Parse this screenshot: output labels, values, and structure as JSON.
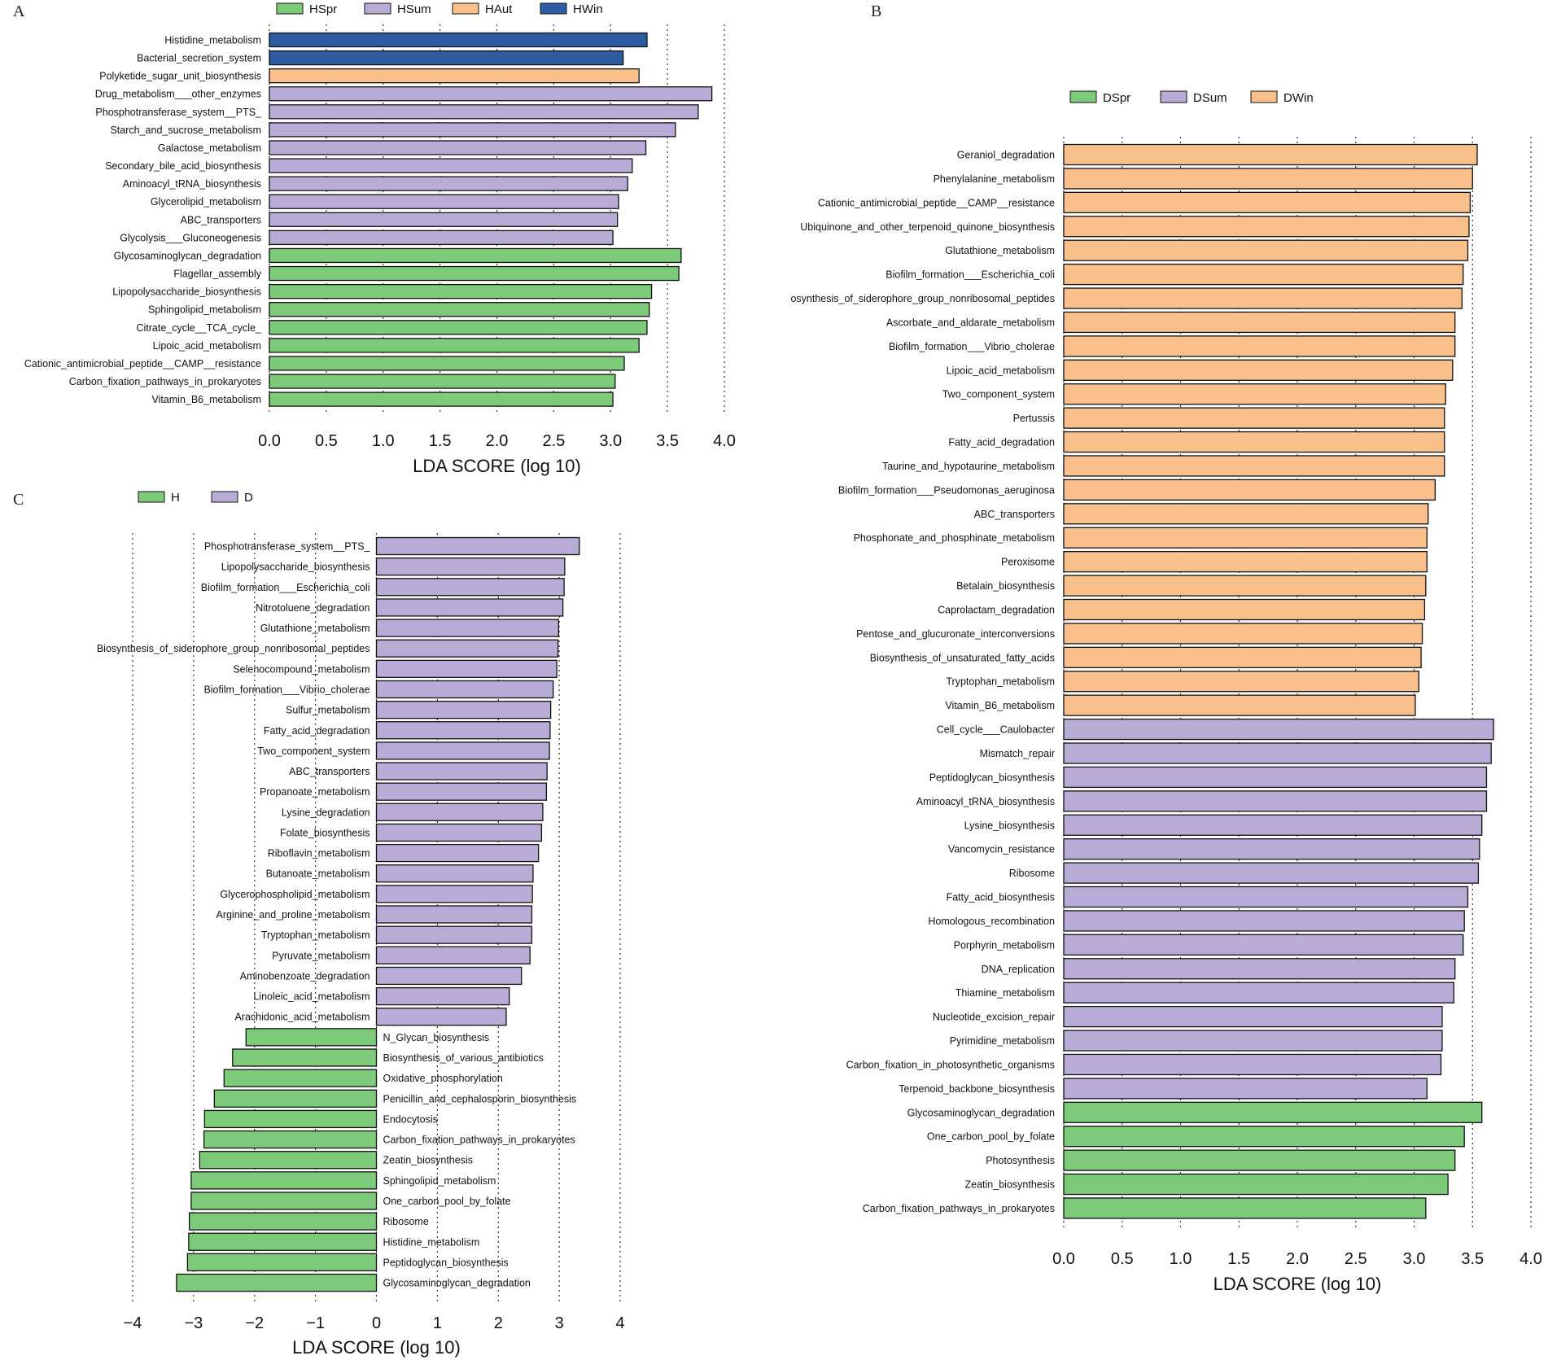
{
  "chart_data": [
    {
      "id": "A",
      "panel_label": "A",
      "type": "bar",
      "orientation": "horizontal",
      "xlabel": "LDA SCORE (log 10)",
      "xlim": [
        0,
        4.0
      ],
      "xticks": [
        "0.0",
        "0.5",
        "1.0",
        "1.5",
        "2.0",
        "2.5",
        "3.0",
        "3.5",
        "4.0"
      ],
      "grid": true,
      "legend_position": "top",
      "legend": [
        {
          "name": "HSpr",
          "color": "#7dca7a"
        },
        {
          "name": "HSum",
          "color": "#b8acd6"
        },
        {
          "name": "HAut",
          "color": "#f9c08c"
        },
        {
          "name": "HWin",
          "color": "#2e5ca3"
        }
      ],
      "bars": [
        {
          "label": "Histidine_metabolism",
          "value": 3.32,
          "group": "HWin"
        },
        {
          "label": "Bacterial_secretion_system",
          "value": 3.11,
          "group": "HWin"
        },
        {
          "label": "Polyketide_sugar_unit_biosynthesis",
          "value": 3.25,
          "group": "HAut"
        },
        {
          "label": "Drug_metabolism___other_enzymes",
          "value": 3.89,
          "group": "HSum"
        },
        {
          "label": "Phosphotransferase_system__PTS_",
          "value": 3.77,
          "group": "HSum"
        },
        {
          "label": "Starch_and_sucrose_metabolism",
          "value": 3.57,
          "group": "HSum"
        },
        {
          "label": "Galactose_metabolism",
          "value": 3.31,
          "group": "HSum"
        },
        {
          "label": "Secondary_bile_acid_biosynthesis",
          "value": 3.19,
          "group": "HSum"
        },
        {
          "label": "Aminoacyl_tRNA_biosynthesis",
          "value": 3.15,
          "group": "HSum"
        },
        {
          "label": "Glycerolipid_metabolism",
          "value": 3.07,
          "group": "HSum"
        },
        {
          "label": "ABC_transporters",
          "value": 3.06,
          "group": "HSum"
        },
        {
          "label": "Glycolysis___Gluconeogenesis",
          "value": 3.02,
          "group": "HSum"
        },
        {
          "label": "Glycosaminoglycan_degradation",
          "value": 3.62,
          "group": "HSpr"
        },
        {
          "label": "Flagellar_assembly",
          "value": 3.6,
          "group": "HSpr"
        },
        {
          "label": "Lipopolysaccharide_biosynthesis",
          "value": 3.36,
          "group": "HSpr"
        },
        {
          "label": "Sphingolipid_metabolism",
          "value": 3.34,
          "group": "HSpr"
        },
        {
          "label": "Citrate_cycle__TCA_cycle_",
          "value": 3.32,
          "group": "HSpr"
        },
        {
          "label": "Lipoic_acid_metabolism",
          "value": 3.25,
          "group": "HSpr"
        },
        {
          "label": "Cationic_antimicrobial_peptide__CAMP__resistance",
          "value": 3.12,
          "group": "HSpr"
        },
        {
          "label": "Carbon_fixation_pathways_in_prokaryotes",
          "value": 3.04,
          "group": "HSpr"
        },
        {
          "label": "Vitamin_B6_metabolism",
          "value": 3.02,
          "group": "HSpr"
        }
      ]
    },
    {
      "id": "B",
      "panel_label": "B",
      "type": "bar",
      "orientation": "horizontal",
      "xlabel": "LDA SCORE (log 10)",
      "xlim": [
        0,
        4.0
      ],
      "xticks": [
        "0.0",
        "0.5",
        "1.0",
        "1.5",
        "2.0",
        "2.5",
        "3.0",
        "3.5",
        "4.0"
      ],
      "grid": true,
      "legend_position": "top",
      "legend": [
        {
          "name": "DSpr",
          "color": "#7dca7a"
        },
        {
          "name": "DSum",
          "color": "#b8acd6"
        },
        {
          "name": "DWin",
          "color": "#f9c08c"
        }
      ],
      "bars": [
        {
          "label": "Geraniol_degradation",
          "value": 3.54,
          "group": "DWin"
        },
        {
          "label": "Phenylalanine_metabolism",
          "value": 3.5,
          "group": "DWin"
        },
        {
          "label": "Cationic_antimicrobial_peptide__CAMP__resistance",
          "value": 3.48,
          "group": "DWin"
        },
        {
          "label": "Ubiquinone_and_other_terpenoid_quinone_biosynthesis",
          "value": 3.47,
          "group": "DWin"
        },
        {
          "label": "Glutathione_metabolism",
          "value": 3.46,
          "group": "DWin"
        },
        {
          "label": "Biofilm_formation___Escherichia_coli",
          "value": 3.42,
          "group": "DWin"
        },
        {
          "label": "osynthesis_of_siderophore_group_nonribosomal_peptides",
          "value": 3.41,
          "group": "DWin"
        },
        {
          "label": "Ascorbate_and_aldarate_metabolism",
          "value": 3.35,
          "group": "DWin"
        },
        {
          "label": "Biofilm_formation___Vibrio_cholerae",
          "value": 3.35,
          "group": "DWin"
        },
        {
          "label": "Lipoic_acid_metabolism",
          "value": 3.33,
          "group": "DWin"
        },
        {
          "label": "Two_component_system",
          "value": 3.27,
          "group": "DWin"
        },
        {
          "label": "Pertussis",
          "value": 3.26,
          "group": "DWin"
        },
        {
          "label": "Fatty_acid_degradation",
          "value": 3.26,
          "group": "DWin"
        },
        {
          "label": "Taurine_and_hypotaurine_metabolism",
          "value": 3.26,
          "group": "DWin"
        },
        {
          "label": "Biofilm_formation___Pseudomonas_aeruginosa",
          "value": 3.18,
          "group": "DWin"
        },
        {
          "label": "ABC_transporters",
          "value": 3.12,
          "group": "DWin"
        },
        {
          "label": "Phosphonate_and_phosphinate_metabolism",
          "value": 3.11,
          "group": "DWin"
        },
        {
          "label": "Peroxisome",
          "value": 3.11,
          "group": "DWin"
        },
        {
          "label": "Betalain_biosynthesis",
          "value": 3.1,
          "group": "DWin"
        },
        {
          "label": "Caprolactam_degradation",
          "value": 3.09,
          "group": "DWin"
        },
        {
          "label": "Pentose_and_glucuronate_interconversions",
          "value": 3.07,
          "group": "DWin"
        },
        {
          "label": "Biosynthesis_of_unsaturated_fatty_acids",
          "value": 3.06,
          "group": "DWin"
        },
        {
          "label": "Tryptophan_metabolism",
          "value": 3.04,
          "group": "DWin"
        },
        {
          "label": "Vitamin_B6_metabolism",
          "value": 3.01,
          "group": "DWin"
        },
        {
          "label": "Cell_cycle___Caulobacter",
          "value": 3.68,
          "group": "DSum"
        },
        {
          "label": "Mismatch_repair",
          "value": 3.66,
          "group": "DSum"
        },
        {
          "label": "Peptidoglycan_biosynthesis",
          "value": 3.62,
          "group": "DSum"
        },
        {
          "label": "Aminoacyl_tRNA_biosynthesis",
          "value": 3.62,
          "group": "DSum"
        },
        {
          "label": "Lysine_biosynthesis",
          "value": 3.58,
          "group": "DSum"
        },
        {
          "label": "Vancomycin_resistance",
          "value": 3.56,
          "group": "DSum"
        },
        {
          "label": "Ribosome",
          "value": 3.55,
          "group": "DSum"
        },
        {
          "label": "Fatty_acid_biosynthesis",
          "value": 3.46,
          "group": "DSum"
        },
        {
          "label": "Homologous_recombination",
          "value": 3.43,
          "group": "DSum"
        },
        {
          "label": "Porphyrin_metabolism",
          "value": 3.42,
          "group": "DSum"
        },
        {
          "label": "DNA_replication",
          "value": 3.35,
          "group": "DSum"
        },
        {
          "label": "Thiamine_metabolism",
          "value": 3.34,
          "group": "DSum"
        },
        {
          "label": "Nucleotide_excision_repair",
          "value": 3.24,
          "group": "DSum"
        },
        {
          "label": "Pyrimidine_metabolism",
          "value": 3.24,
          "group": "DSum"
        },
        {
          "label": "Carbon_fixation_in_photosynthetic_organisms",
          "value": 3.23,
          "group": "DSum"
        },
        {
          "label": "Terpenoid_backbone_biosynthesis",
          "value": 3.11,
          "group": "DSum"
        },
        {
          "label": "Glycosaminoglycan_degradation",
          "value": 3.58,
          "group": "DSpr"
        },
        {
          "label": "One_carbon_pool_by_folate",
          "value": 3.43,
          "group": "DSpr"
        },
        {
          "label": "Photosynthesis",
          "value": 3.35,
          "group": "DSpr"
        },
        {
          "label": "Zeatin_biosynthesis",
          "value": 3.29,
          "group": "DSpr"
        },
        {
          "label": "Carbon_fixation_pathways_in_prokaryotes",
          "value": 3.1,
          "group": "DSpr"
        }
      ]
    },
    {
      "id": "C",
      "panel_label": "C",
      "type": "bar",
      "orientation": "horizontal",
      "xlabel": "LDA SCORE (log 10)",
      "xlim": [
        -4,
        4
      ],
      "xticks": [
        "−4",
        "−3",
        "−2",
        "−1",
        "0",
        "1",
        "2",
        "3",
        "4"
      ],
      "grid": true,
      "legend_position": "top",
      "legend": [
        {
          "name": "H",
          "color": "#7dca7a"
        },
        {
          "name": "D",
          "color": "#b8acd6"
        }
      ],
      "bars": [
        {
          "label": "Phosphotransferase_system__PTS_",
          "value": 3.33,
          "group": "D"
        },
        {
          "label": "Lipopolysaccharide_biosynthesis",
          "value": 3.09,
          "group": "D"
        },
        {
          "label": "Biofilm_formation___Escherichia_coli",
          "value": 3.08,
          "group": "D"
        },
        {
          "label": "Nitrotoluene_degradation",
          "value": 3.06,
          "group": "D"
        },
        {
          "label": "Glutathione_metabolism",
          "value": 2.99,
          "group": "D"
        },
        {
          "label": "Biosynthesis_of_siderophore_group_nonribosomal_peptides",
          "value": 2.98,
          "group": "D"
        },
        {
          "label": "Selenocompound_metabolism",
          "value": 2.96,
          "group": "D"
        },
        {
          "label": "Biofilm_formation___Vibrio_cholerae",
          "value": 2.9,
          "group": "D"
        },
        {
          "label": "Sulfur_metabolism",
          "value": 2.86,
          "group": "D"
        },
        {
          "label": "Fatty_acid_degradation",
          "value": 2.85,
          "group": "D"
        },
        {
          "label": "Two_component_system",
          "value": 2.84,
          "group": "D"
        },
        {
          "label": "ABC_transporters",
          "value": 2.8,
          "group": "D"
        },
        {
          "label": "Propanoate_metabolism",
          "value": 2.79,
          "group": "D"
        },
        {
          "label": "Lysine_degradation",
          "value": 2.73,
          "group": "D"
        },
        {
          "label": "Folate_biosynthesis",
          "value": 2.71,
          "group": "D"
        },
        {
          "label": "Riboflavin_metabolism",
          "value": 2.66,
          "group": "D"
        },
        {
          "label": "Butanoate_metabolism",
          "value": 2.57,
          "group": "D"
        },
        {
          "label": "Glycerophospholipid_metabolism",
          "value": 2.56,
          "group": "D"
        },
        {
          "label": "Arginine_and_proline_metabolism",
          "value": 2.55,
          "group": "D"
        },
        {
          "label": "Tryptophan_metabolism",
          "value": 2.55,
          "group": "D"
        },
        {
          "label": "Pyruvate_metabolism",
          "value": 2.52,
          "group": "D"
        },
        {
          "label": "Aminobenzoate_degradation",
          "value": 2.38,
          "group": "D"
        },
        {
          "label": "Linoleic_acid_metabolism",
          "value": 2.18,
          "group": "D"
        },
        {
          "label": "Arachidonic_acid_metabolism",
          "value": 2.13,
          "group": "D"
        },
        {
          "label": "N_Glycan_biosynthesis",
          "value": -2.14,
          "group": "H"
        },
        {
          "label": "Biosynthesis_of_various_antibiotics",
          "value": -2.36,
          "group": "H"
        },
        {
          "label": "Oxidative_phosphorylation",
          "value": -2.5,
          "group": "H"
        },
        {
          "label": "Penicillin_and_cephalosporin_biosynthesis",
          "value": -2.66,
          "group": "H"
        },
        {
          "label": "Endocytosis",
          "value": -2.82,
          "group": "H"
        },
        {
          "label": "Carbon_fixation_pathways_in_prokaryotes",
          "value": -2.83,
          "group": "H"
        },
        {
          "label": "Zeatin_biosynthesis",
          "value": -2.9,
          "group": "H"
        },
        {
          "label": "Sphingolipid_metabolism",
          "value": -3.04,
          "group": "H"
        },
        {
          "label": "One_carbon_pool_by_folate",
          "value": -3.04,
          "group": "H"
        },
        {
          "label": "Ribosome",
          "value": -3.07,
          "group": "H"
        },
        {
          "label": "Histidine_metabolism",
          "value": -3.08,
          "group": "H"
        },
        {
          "label": "Peptidoglycan_biosynthesis",
          "value": -3.1,
          "group": "H"
        },
        {
          "label": "Glycosaminoglycan_degradation",
          "value": -3.28,
          "group": "H"
        }
      ]
    }
  ]
}
